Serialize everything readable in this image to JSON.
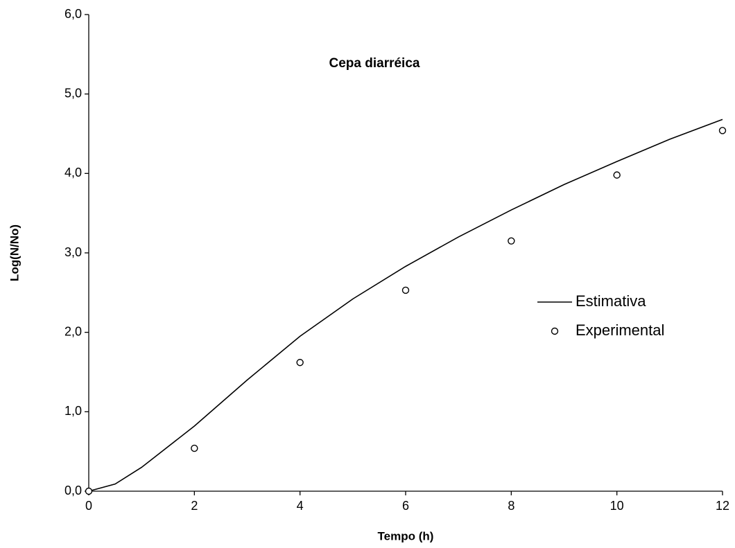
{
  "chart_data": {
    "type": "line",
    "title": "Cepa diarréica",
    "xlabel": "Tempo (h)",
    "ylabel": "Log(N/No)",
    "xlim": [
      0,
      12
    ],
    "xticks": [
      0,
      2,
      4,
      6,
      8,
      10,
      12
    ],
    "ylim": [
      0,
      6
    ],
    "yticks": [
      {
        "value": 0,
        "label": "0,0"
      },
      {
        "value": 1,
        "label": "1,0"
      },
      {
        "value": 2,
        "label": "2,0"
      },
      {
        "value": 3,
        "label": "3,0"
      },
      {
        "value": 4,
        "label": "4,0"
      },
      {
        "value": 5,
        "label": "5,0"
      },
      {
        "value": 6,
        "label": "6,0"
      }
    ],
    "grid": false,
    "series": [
      {
        "name": "Estimativa",
        "color": "#000000",
        "style": "line",
        "x": [
          0,
          0.5,
          1,
          2,
          3,
          4,
          5,
          6,
          7,
          8,
          9,
          10,
          11,
          12
        ],
        "values": [
          0,
          0.09,
          0.3,
          0.82,
          1.4,
          1.95,
          2.42,
          2.83,
          3.2,
          3.54,
          3.86,
          4.15,
          4.43,
          4.68
        ]
      },
      {
        "name": "Experimental",
        "color": "#000000",
        "style": "marker",
        "x": [
          0,
          2,
          4,
          6,
          8,
          10,
          12
        ],
        "values": [
          0,
          0.54,
          1.62,
          2.53,
          3.15,
          3.98,
          4.54
        ]
      }
    ]
  }
}
